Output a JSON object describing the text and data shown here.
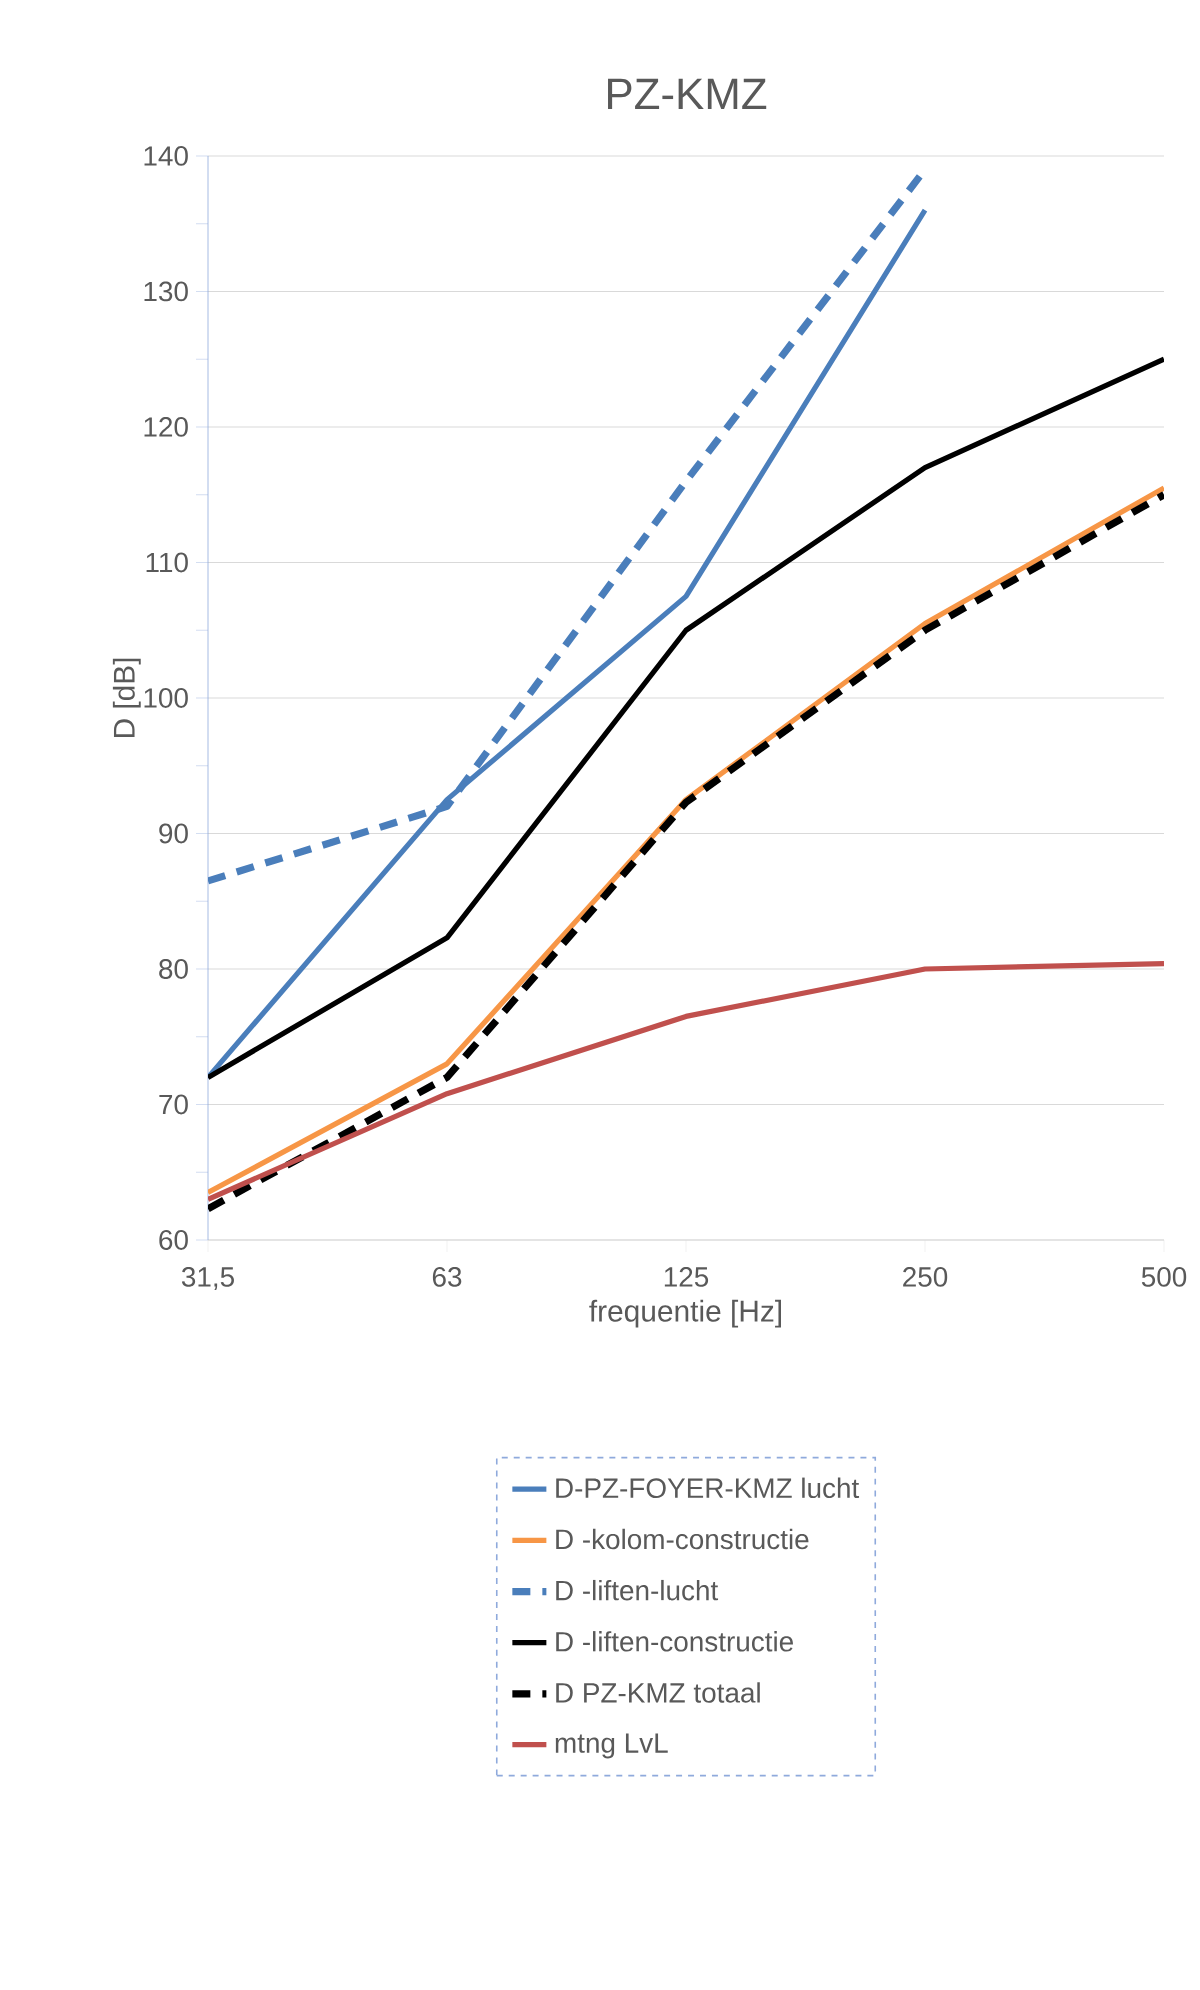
{
  "chart_data": {
    "type": "line",
    "title": "PZ-KMZ",
    "xlabel": "frequentie  [Hz]",
    "ylabel": "D  [dB]",
    "categories": [
      "31,5",
      "63",
      "125",
      "250",
      "500"
    ],
    "ylim": [
      60,
      140
    ],
    "yticks": [
      60,
      70,
      80,
      90,
      100,
      110,
      120,
      130,
      140
    ],
    "grid": "y",
    "legend": "bottom",
    "series": [
      {
        "name": "D-PZ-FOYER-KMZ lucht",
        "color": "#4a7ebb",
        "line_style": "solid",
        "values": [
          72,
          92.5,
          107.5,
          136,
          null
        ]
      },
      {
        "name": "D -kolom-constructie",
        "color": "#f79646",
        "line_style": "solid",
        "values": [
          63.5,
          73,
          92.5,
          105.5,
          115.5
        ]
      },
      {
        "name": "D -liften-lucht",
        "color": "#4a7ebb",
        "line_style": "dashed",
        "values": [
          86.5,
          92,
          116,
          139,
          null
        ]
      },
      {
        "name": "D -liften-constructie",
        "color": "#000000",
        "line_style": "solid",
        "values": [
          72,
          82.3,
          105,
          117,
          125
        ]
      },
      {
        "name": "D PZ-KMZ totaal",
        "color": "#000000",
        "line_style": "dashed",
        "values": [
          62.3,
          72,
          92.3,
          105,
          115
        ]
      },
      {
        "name": "mtng LvL",
        "color": "#c0504d",
        "line_style": "solid",
        "values": [
          63,
          70.8,
          76.5,
          80,
          80.4
        ]
      }
    ]
  }
}
